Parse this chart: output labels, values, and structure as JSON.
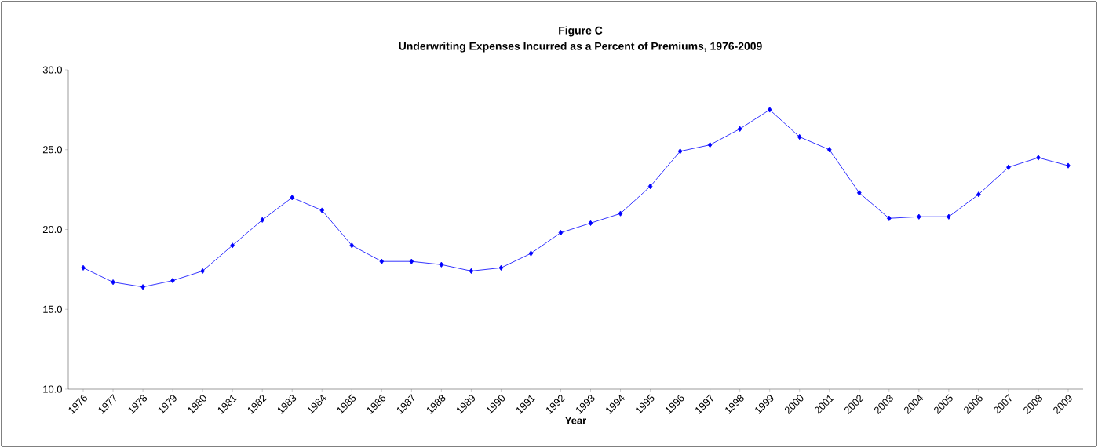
{
  "chart_data": {
    "type": "line",
    "title": "Figure C",
    "subtitle": "Underwriting Expenses Incurred as a Percent of Premiums, 1976-2009",
    "xlabel": "Year",
    "categories": [
      "1976",
      "1977",
      "1978",
      "1979",
      "1980",
      "1981",
      "1982",
      "1983",
      "1984",
      "1985",
      "1986",
      "1987",
      "1988",
      "1989",
      "1990",
      "1991",
      "1992",
      "1993",
      "1994",
      "1995",
      "1996",
      "1997",
      "1998",
      "1999",
      "2000",
      "2001",
      "2002",
      "2003",
      "2004",
      "2005",
      "2006",
      "2007",
      "2008",
      "2009"
    ],
    "series": [
      {
        "color": "#0000ff",
        "values": [
          17.6,
          16.7,
          16.4,
          16.8,
          17.4,
          19.0,
          20.6,
          22.0,
          21.2,
          19.0,
          18.0,
          18.0,
          17.8,
          17.4,
          17.6,
          18.5,
          19.8,
          20.4,
          21.0,
          22.7,
          24.9,
          25.3,
          26.3,
          27.5,
          25.8,
          25.0,
          22.3,
          20.7,
          20.8,
          20.8,
          22.2,
          23.9,
          24.5,
          24.0
        ]
      }
    ],
    "ylim": [
      10,
      30
    ],
    "yticks": [
      {
        "value": 10,
        "label": "10.0"
      },
      {
        "value": 15,
        "label": "15.0"
      },
      {
        "value": 20,
        "label": "20.0"
      },
      {
        "value": 25,
        "label": "25.0"
      },
      {
        "value": 30,
        "label": "30.0"
      }
    ],
    "marker": "diamond",
    "line_style": "solid"
  }
}
